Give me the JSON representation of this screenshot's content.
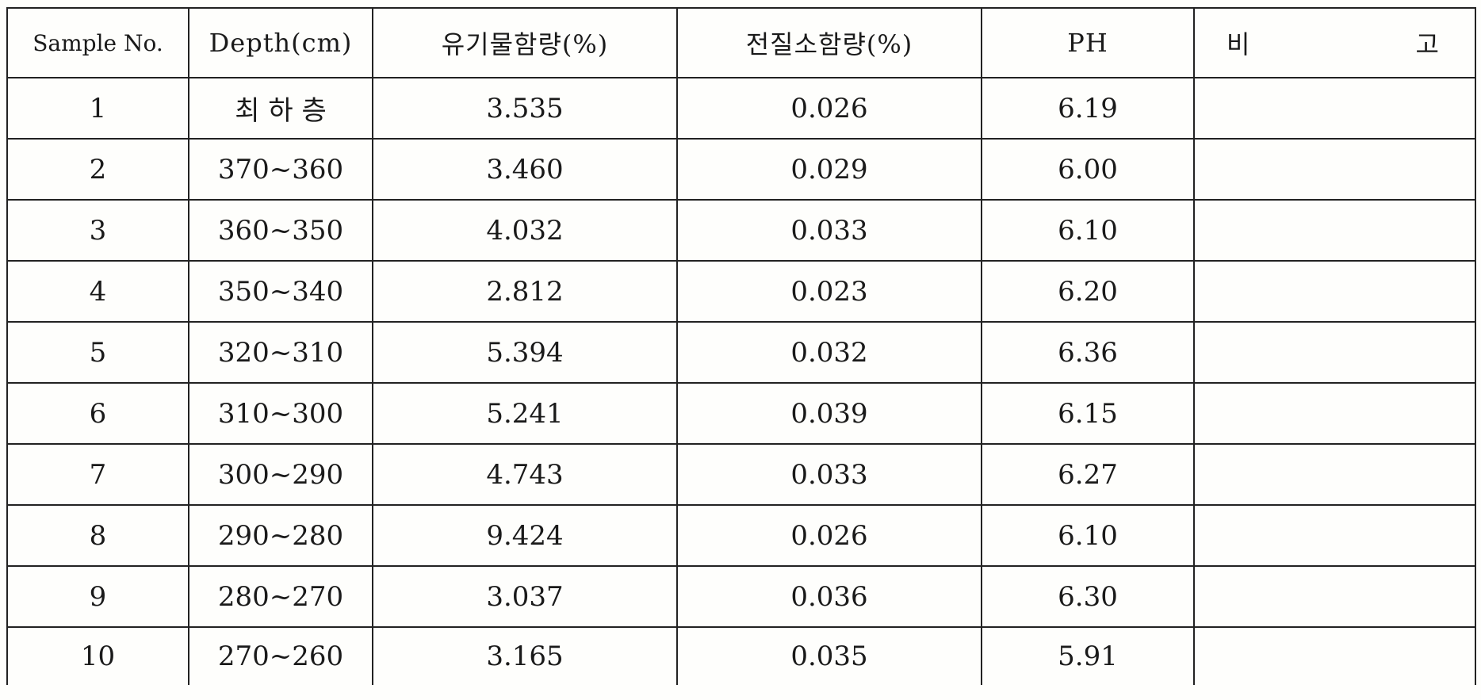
{
  "table": {
    "headers": {
      "sample_no": "Sample No.",
      "depth": "Depth(cm)",
      "organic": "유기물함량(%)",
      "nitrogen": "전질소함량(%)",
      "ph": "PH",
      "remark_a": "비",
      "remark_b": "고"
    },
    "rows": [
      {
        "no": "1",
        "depth": "최 하 층",
        "organic": "3.535",
        "nitrogen": "0.026",
        "ph": "6.19",
        "remark": ""
      },
      {
        "no": "2",
        "depth": "370~360",
        "organic": "3.460",
        "nitrogen": "0.029",
        "ph": "6.00",
        "remark": ""
      },
      {
        "no": "3",
        "depth": "360~350",
        "organic": "4.032",
        "nitrogen": "0.033",
        "ph": "6.10",
        "remark": ""
      },
      {
        "no": "4",
        "depth": "350~340",
        "organic": "2.812",
        "nitrogen": "0.023",
        "ph": "6.20",
        "remark": ""
      },
      {
        "no": "5",
        "depth": "320~310",
        "organic": "5.394",
        "nitrogen": "0.032",
        "ph": "6.36",
        "remark": ""
      },
      {
        "no": "6",
        "depth": "310~300",
        "organic": "5.241",
        "nitrogen": "0.039",
        "ph": "6.15",
        "remark": ""
      },
      {
        "no": "7",
        "depth": "300~290",
        "organic": "4.743",
        "nitrogen": "0.033",
        "ph": "6.27",
        "remark": ""
      },
      {
        "no": "8",
        "depth": "290~280",
        "organic": "9.424",
        "nitrogen": "0.026",
        "ph": "6.10",
        "remark": ""
      },
      {
        "no": "9",
        "depth": "280~270",
        "organic": "3.037",
        "nitrogen": "0.036",
        "ph": "6.30",
        "remark": ""
      },
      {
        "no": "10",
        "depth": "270~260",
        "organic": "3.165",
        "nitrogen": "0.035",
        "ph": "5.91",
        "remark": ""
      }
    ]
  }
}
